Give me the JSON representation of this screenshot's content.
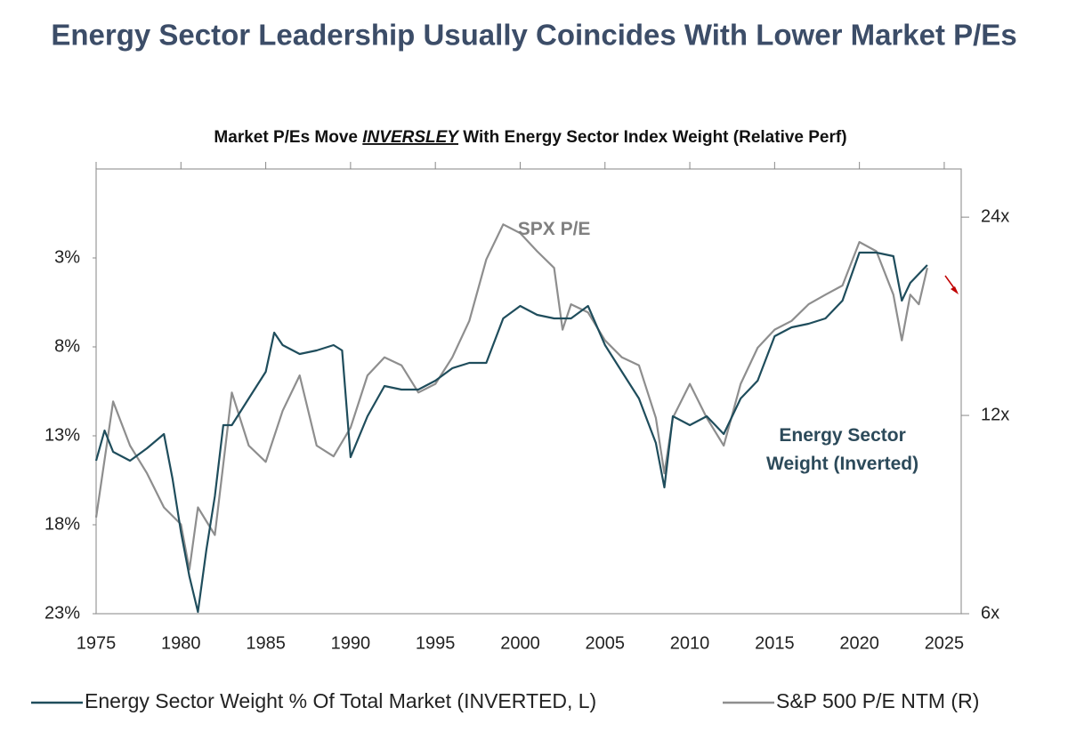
{
  "chart_data": {
    "type": "line",
    "title": "Energy Sector Leadership Usually Coincides With Lower Market P/Es",
    "subtitle": [
      "Market P/Es Move",
      "INVERSLEY",
      "With Energy Sector Index Weight (Relative Perf)"
    ],
    "xlim": [
      1975,
      2026
    ],
    "xticks": [
      1975,
      1980,
      1985,
      1990,
      1995,
      2000,
      2005,
      2010,
      2015,
      2020,
      2025
    ],
    "ylim": [
      23,
      -2
    ],
    "yticks": [
      {
        "value": 3,
        "label": "3%"
      },
      {
        "value": 8,
        "label": "8%"
      },
      {
        "value": 13,
        "label": "13%"
      },
      {
        "value": 18,
        "label": "18%"
      },
      {
        "value": 23,
        "label": "23%"
      }
    ],
    "y2lim": [
      6,
      28.4
    ],
    "y2log": true,
    "y2ticks": [
      {
        "value": 6,
        "label": "6x"
      },
      {
        "value": 12,
        "label": "12x"
      },
      {
        "value": 24,
        "label": "24x"
      }
    ],
    "annotations": [
      {
        "lines": [
          "SPX P/E"
        ],
        "x": 2002,
        "y2": 23
      },
      {
        "lines": [
          "Energy Sector",
          "Weight (Inverted)"
        ],
        "x": 2019,
        "y": 13
      }
    ],
    "series": [
      {
        "name": "Energy Sector Weight % Of Total Market (INVERTED, L)",
        "color": "#1f4d5c",
        "axis": "y",
        "x": [
          1975,
          1975.5,
          1976,
          1977,
          1978,
          1979,
          1979.5,
          1980,
          1980.5,
          1981,
          1981.5,
          1982,
          1982.5,
          1983,
          1984,
          1985,
          1985.5,
          1986,
          1987,
          1988,
          1989,
          1989.5,
          1990,
          1991,
          1992,
          1993,
          1994,
          1995,
          1996,
          1997,
          1998,
          1999,
          2000,
          2001,
          2002,
          2003,
          2004,
          2005,
          2006,
          2007,
          2008,
          2008.5,
          2009,
          2010,
          2011,
          2012,
          2013,
          2014,
          2015,
          2016,
          2017,
          2018,
          2019,
          2020,
          2021,
          2022,
          2022.5,
          2023,
          2024
        ],
        "values": [
          14.4,
          12.7,
          13.9,
          14.4,
          13.7,
          12.9,
          15.4,
          18.4,
          20.9,
          22.9,
          19.4,
          16.4,
          12.4,
          12.4,
          10.9,
          9.4,
          7.2,
          7.9,
          8.4,
          8.2,
          7.9,
          8.2,
          14.2,
          11.9,
          10.2,
          10.4,
          10.4,
          9.9,
          9.2,
          8.9,
          8.9,
          6.4,
          5.7,
          6.2,
          6.4,
          6.4,
          5.7,
          7.9,
          9.4,
          10.9,
          13.4,
          15.9,
          11.9,
          12.4,
          11.9,
          12.9,
          10.9,
          9.9,
          7.4,
          6.9,
          6.7,
          6.4,
          5.4,
          2.7,
          2.7,
          2.9,
          5.4,
          4.4,
          3.4
        ]
      },
      {
        "name": "S&P 500 P/E NTM (R)",
        "color": "#8e8e8e",
        "axis": "y2",
        "x": [
          1975,
          1976,
          1977,
          1978,
          1979,
          1980,
          1980.5,
          1981,
          1982,
          1983,
          1984,
          1985,
          1986,
          1987,
          1988,
          1989,
          1990,
          1991,
          1992,
          1993,
          1994,
          1995,
          1996,
          1997,
          1998,
          1999,
          2000,
          2001,
          2002,
          2002.5,
          2003,
          2004,
          2005,
          2006,
          2007,
          2008,
          2008.5,
          2009,
          2010,
          2011,
          2012,
          2013,
          2014,
          2015,
          2016,
          2017,
          2018,
          2019,
          2020,
          2021,
          2022,
          2022.5,
          2023,
          2023.5,
          2024
        ],
        "values": [
          8.4,
          12.6,
          10.8,
          9.8,
          8.7,
          8.2,
          7.0,
          8.7,
          7.9,
          13.0,
          10.8,
          10.2,
          12.2,
          13.8,
          10.8,
          10.4,
          11.5,
          13.8,
          14.7,
          14.3,
          13.0,
          13.4,
          14.7,
          16.7,
          20.7,
          23.4,
          22.7,
          21.3,
          20.1,
          16.2,
          17.7,
          17.2,
          15.6,
          14.7,
          14.3,
          11.9,
          9.8,
          11.9,
          13.4,
          11.9,
          10.8,
          13.4,
          15.2,
          16.2,
          16.7,
          17.7,
          18.3,
          18.9,
          22.0,
          21.3,
          18.3,
          15.6,
          18.3,
          17.7,
          20.1
        ]
      }
    ]
  }
}
